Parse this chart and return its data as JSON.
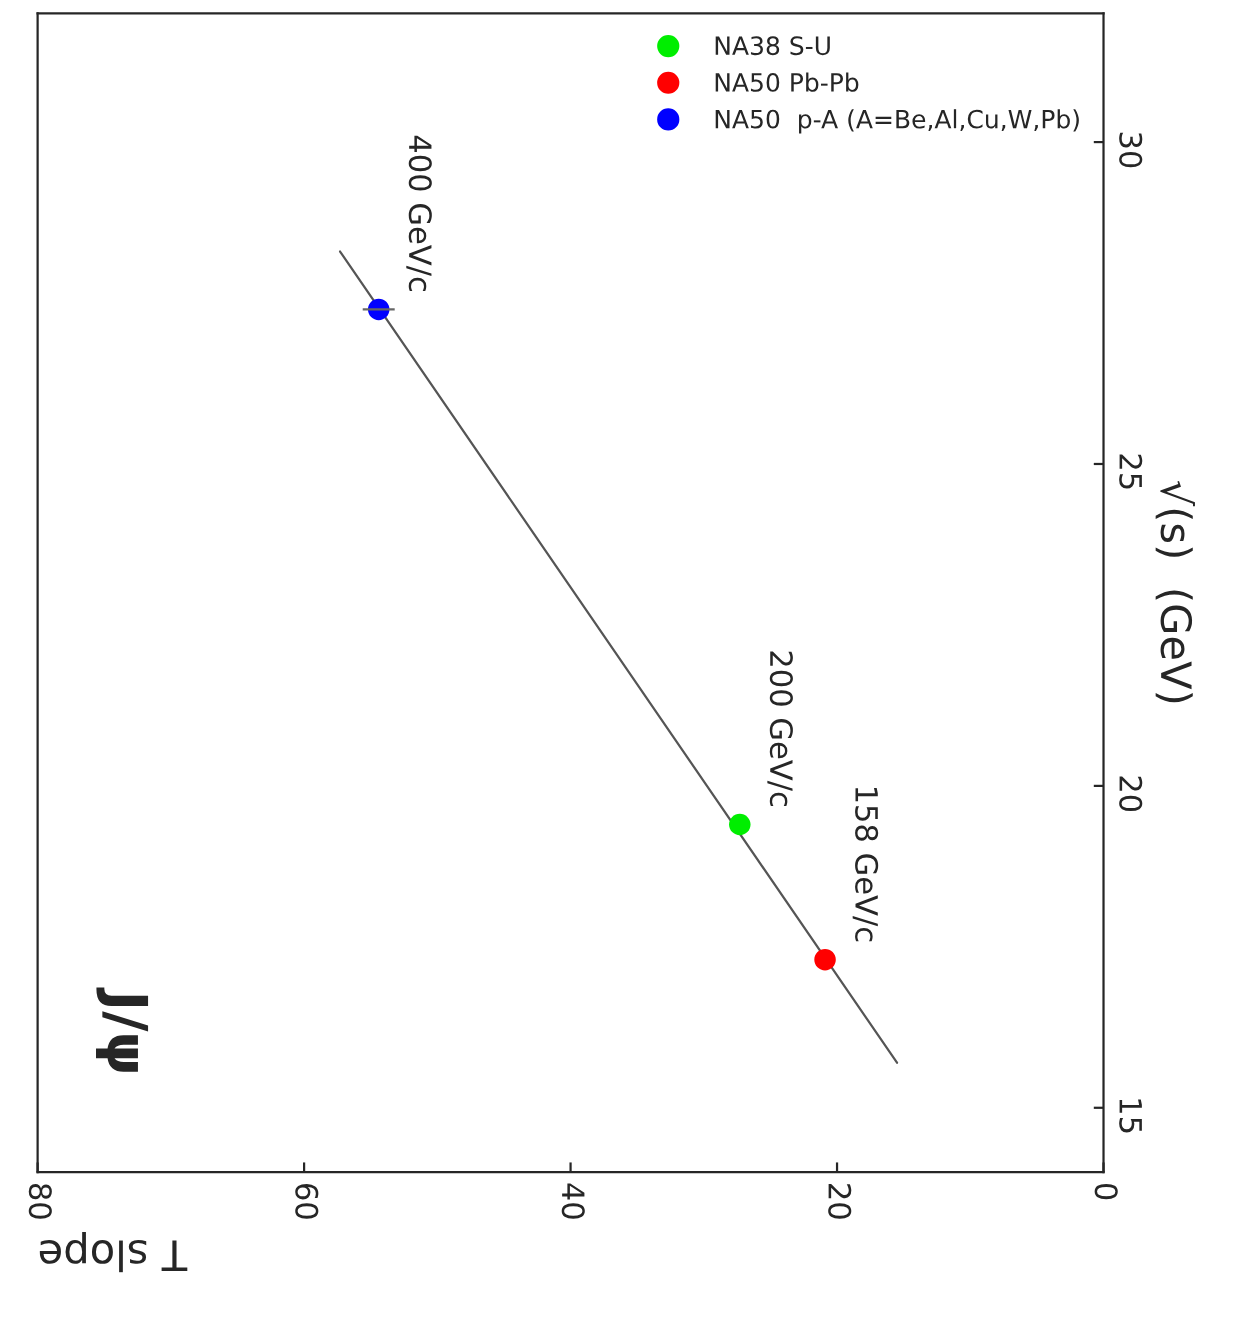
{
  "chart_data": {
    "type": "scatter",
    "xlabel": "T slope",
    "ylabel": "√(s)  (GeV)",
    "xlim": [
      80,
      0
    ],
    "xticks": [
      80,
      60,
      40,
      20,
      0
    ],
    "ylim": [
      14,
      32
    ],
    "yticks": [
      15,
      20,
      25,
      30
    ],
    "grid": false,
    "legend": "upper right",
    "marker": "circle",
    "series": [
      {
        "name": "NA38 S-U",
        "color": "#00ee00",
        "x": [
          27.3
        ],
        "values": [
          19.4
        ]
      },
      {
        "name": "NA50 Pb-Pb",
        "color": "#ff0000",
        "x": [
          20.9
        ],
        "values": [
          17.3
        ]
      },
      {
        "name": "NA50  p-A (A=Be,Al,Cu,W,Pb)",
        "color": "#0000ff",
        "x": [
          54.4
        ],
        "values": [
          27.4
        ],
        "xerrors": [
          1.2
        ]
      },
      {
        "type": "line",
        "marker": "none",
        "color": "#555555",
        "x": [
          57.3,
          15.5
        ],
        "values": [
          28.3,
          15.7
        ]
      }
    ],
    "annotations": [
      "J/ψ",
      {
        "text": "400 GeV/c",
        "x": 54.4,
        "y": 27.4
      },
      {
        "text": "200 GeV/c",
        "x": 27.3,
        "y": 19.4
      },
      {
        "text": "158 GeV/c",
        "x": 20.9,
        "y": 17.3
      }
    ]
  }
}
